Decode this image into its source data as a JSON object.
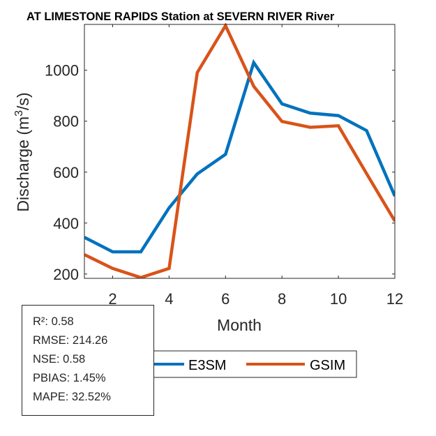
{
  "chart_data": {
    "type": "line",
    "title": "AT LIMESTONE RAPIDS  Station at  SEVERN RIVER  River",
    "xlabel": "Month",
    "ylabel_main": "Discharge (m",
    "ylabel_sup": "3",
    "ylabel_end": "/s)",
    "xlim": [
      1,
      12
    ],
    "ylim": [
      183,
      1180
    ],
    "xticks": [
      2,
      4,
      6,
      8,
      10,
      12
    ],
    "yticks": [
      200,
      400,
      600,
      800,
      1000
    ],
    "x": [
      1,
      2,
      3,
      4,
      5,
      6,
      7,
      8,
      9,
      10,
      11,
      12
    ],
    "series": [
      {
        "name": "E3SM",
        "color": "#0072BD",
        "values": [
          344,
          287,
          287,
          460,
          593,
          670,
          1030,
          868,
          832,
          822,
          763,
          506
        ]
      },
      {
        "name": "GSIM",
        "color": "#D95319",
        "values": [
          276,
          222,
          186,
          222,
          991,
          1175,
          937,
          799,
          776,
          782,
          594,
          408
        ]
      }
    ],
    "legend_position": "bottom"
  },
  "stats": [
    "R²: 0.58",
    "RMSE: 214.26",
    "NSE: 0.58",
    "PBIAS: 1.45%",
    "MAPE: 32.52%"
  ]
}
